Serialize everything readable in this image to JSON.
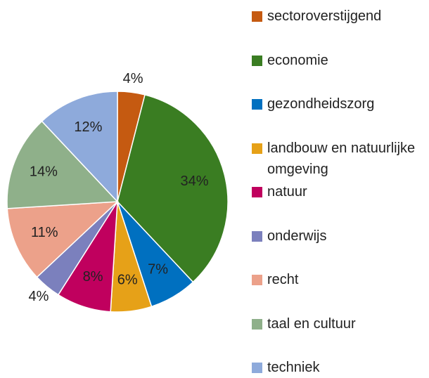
{
  "chart_data": {
    "type": "pie",
    "categories": [
      "sectoroverstijgend",
      "economie",
      "gezondheidszorg",
      "landbouw en natuurlijke omgeving",
      "natuur",
      "onderwijs",
      "recht",
      "taal en cultuur",
      "techniek"
    ],
    "values": [
      4,
      34,
      7,
      6,
      8,
      4,
      11,
      14,
      12
    ],
    "value_labels": [
      "4%",
      "34%",
      "7%",
      "6%",
      "8%",
      "4%",
      "11%",
      "14%",
      "12%"
    ],
    "colors": [
      "#c55a11",
      "#3a7d22",
      "#0070c0",
      "#e6a118",
      "#c0005e",
      "#7b80bd",
      "#eca18a",
      "#8fb08a",
      "#8eaadb"
    ],
    "legend": "right"
  }
}
